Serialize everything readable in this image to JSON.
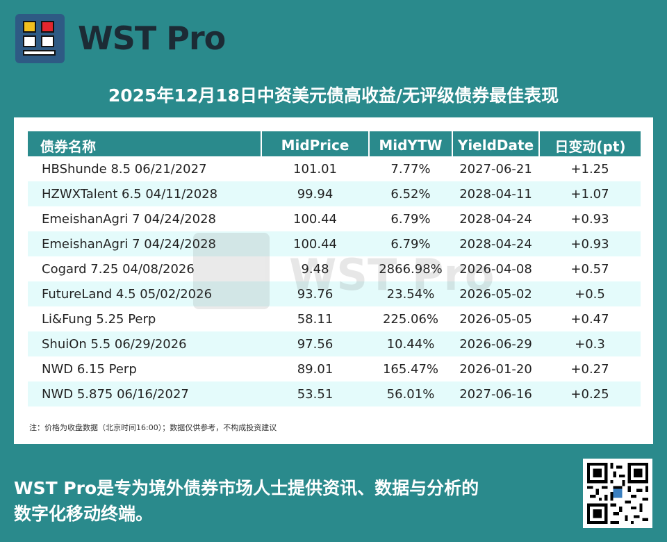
{
  "brand": {
    "name": "WST Pro",
    "accent": "#2a8a8c",
    "logo_colors": [
      "#f2c01e",
      "#e3262d",
      "#ffffff",
      "#2e5a84"
    ]
  },
  "title": "2025年12月18日中资美元债高收益/无评级债券最佳表现",
  "table": {
    "headers": [
      "债券名称",
      "MidPrice",
      "MidYTW",
      "YieldDate",
      "日变动(pt)"
    ],
    "rows": [
      [
        "HBShunde 8.5 06/21/2027",
        "101.01",
        "7.77%",
        "2027-06-21",
        "+1.25"
      ],
      [
        "HZWXTalent 6.5 04/11/2028",
        "99.94",
        "6.52%",
        "2028-04-11",
        "+1.07"
      ],
      [
        "EmeishanAgri 7 04/24/2028",
        "100.44",
        "6.79%",
        "2028-04-24",
        "+0.93"
      ],
      [
        "EmeishanAgri 7 04/24/2028",
        "100.44",
        "6.79%",
        "2028-04-24",
        "+0.93"
      ],
      [
        "Cogard 7.25 04/08/2026",
        "9.48",
        "2866.98%",
        "2026-04-08",
        "+0.57"
      ],
      [
        "FutureLand 4.5 05/02/2026",
        "93.76",
        "23.54%",
        "2026-05-02",
        "+0.5"
      ],
      [
        "Li&Fung 5.25 Perp",
        "58.11",
        "225.06%",
        "2026-05-05",
        "+0.47"
      ],
      [
        "ShuiOn 5.5 06/29/2026",
        "97.56",
        "10.44%",
        "2026-06-29",
        "+0.3"
      ],
      [
        "NWD 6.15 Perp",
        "89.01",
        "165.47%",
        "2026-01-20",
        "+0.27"
      ],
      [
        "NWD 5.875 06/16/2027",
        "53.51",
        "56.01%",
        "2027-06-16",
        "+0.25"
      ]
    ]
  },
  "watermark": "WST Pro",
  "note": "注：价格为收盘数据（北京时间16:00）；数据仅供参考，不构成投资建议",
  "footer": {
    "line1": "WST Pro是专为境外债券市场人士提供资讯、数据与分析的",
    "line2": "数字化移动终端。"
  },
  "qr_icon": "qr-code-icon"
}
